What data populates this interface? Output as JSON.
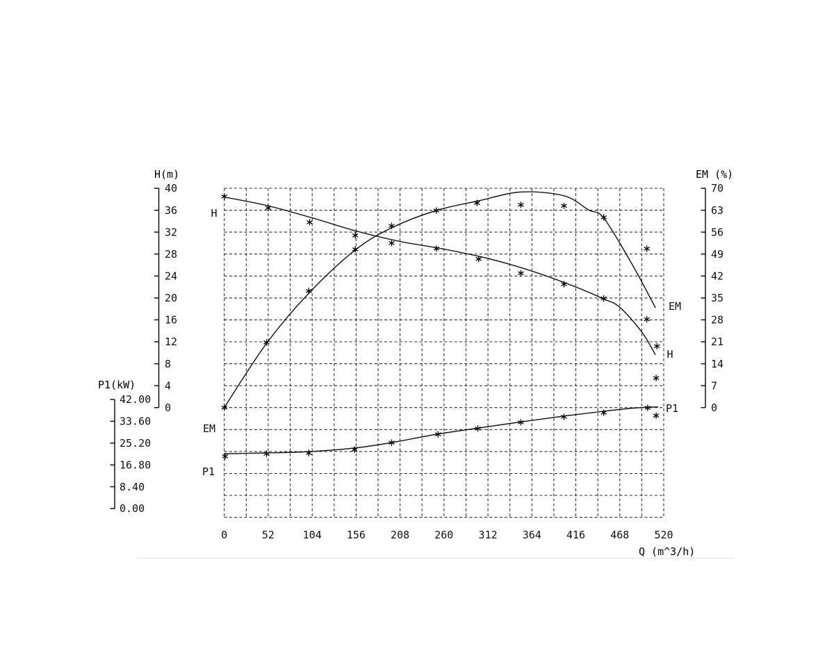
{
  "colors": {
    "background": "#ffffff",
    "ink": "#111111",
    "curve": "#161616",
    "grid": "#2e2e2e",
    "divider": "#e4e4e4"
  },
  "chart_data": {
    "type": "line",
    "grid": "dashed",
    "axes": {
      "q": {
        "title": "Q (m^3/h)",
        "min": 0,
        "max": 520,
        "grid_interval": 26,
        "ticks": [
          0,
          52,
          104,
          156,
          208,
          260,
          312,
          364,
          416,
          468,
          520
        ]
      },
      "h": {
        "title": "H(m)",
        "min": 0,
        "max": 40,
        "side": "left",
        "ticks": [
          "40",
          "36",
          "32",
          "28",
          "24",
          "20",
          "16",
          "12",
          "8",
          "4",
          "0"
        ]
      },
      "p1": {
        "title": "P1(kW)",
        "min": 0,
        "max": 42,
        "side": "far-left",
        "ticks": [
          "42.00",
          "33.60",
          "25.20",
          "16.80",
          "8.40",
          "0.00"
        ]
      },
      "em": {
        "title": "EM (%)",
        "min": 0,
        "max": 70,
        "side": "right",
        "ticks": [
          "70",
          "63",
          "56",
          "49",
          "42",
          "35",
          "28",
          "21",
          "14",
          "7",
          "0"
        ]
      }
    },
    "series": [
      {
        "name": "H",
        "axis": "h",
        "unit": "m",
        "curve": [
          [
            0,
            38.4
          ],
          [
            52,
            36.8
          ],
          [
            104,
            34.6
          ],
          [
            156,
            32.2
          ],
          [
            208,
            30.3
          ],
          [
            260,
            28.9
          ],
          [
            312,
            27.2
          ],
          [
            364,
            24.9
          ],
          [
            416,
            22.0
          ],
          [
            449,
            19.8
          ],
          [
            468,
            18.3
          ],
          [
            494,
            13.8
          ],
          [
            510,
            9.7
          ]
        ],
        "points": [
          [
            0,
            38.5
          ],
          [
            52,
            36.4
          ],
          [
            101,
            33.8
          ],
          [
            155,
            31.4
          ],
          [
            198,
            30.0
          ],
          [
            251,
            29.0
          ],
          [
            301,
            27.1
          ],
          [
            351,
            24.5
          ],
          [
            402,
            22.5
          ],
          [
            449,
            19.9
          ],
          [
            500,
            16.1
          ],
          [
            512,
            11.2
          ],
          [
            511,
            5.4
          ]
        ]
      },
      {
        "name": "EM",
        "axis": "em",
        "unit": "%",
        "curve": [
          [
            0,
            0
          ],
          [
            50,
            20.5
          ],
          [
            100,
            36.5
          ],
          [
            155,
            50.3
          ],
          [
            199,
            57.5
          ],
          [
            251,
            62.9
          ],
          [
            301,
            66.0
          ],
          [
            351,
            68.8
          ],
          [
            402,
            67.6
          ],
          [
            431,
            63.1
          ],
          [
            449,
            60.5
          ],
          [
            482,
            46.0
          ],
          [
            510,
            32.0
          ]
        ],
        "points": [
          [
            0,
            0
          ],
          [
            50,
            20.8
          ],
          [
            100,
            37.2
          ],
          [
            155,
            50.5
          ],
          [
            198,
            58.0
          ],
          [
            251,
            62.9
          ],
          [
            299,
            65.3
          ],
          [
            351,
            64.7
          ],
          [
            402,
            64.4
          ],
          [
            449,
            60.7
          ],
          [
            500,
            50.7
          ]
        ]
      },
      {
        "name": "P1",
        "axis": "p1",
        "unit": "kW",
        "curve": [
          [
            0,
            21.1
          ],
          [
            50,
            21.4
          ],
          [
            100,
            21.9
          ],
          [
            154,
            23.3
          ],
          [
            198,
            25.4
          ],
          [
            251,
            28.6
          ],
          [
            301,
            31.0
          ],
          [
            352,
            33.4
          ],
          [
            402,
            35.6
          ],
          [
            450,
            37.5
          ],
          [
            478,
            38.5
          ],
          [
            500,
            39.0
          ],
          [
            513,
            39.1
          ]
        ],
        "points": [
          [
            1,
            20.1
          ],
          [
            50,
            21.1
          ],
          [
            100,
            21.4
          ],
          [
            154,
            22.7
          ],
          [
            198,
            25.4
          ],
          [
            253,
            28.6
          ],
          [
            300,
            30.8
          ],
          [
            351,
            33.2
          ],
          [
            402,
            35.3
          ],
          [
            449,
            36.9
          ],
          [
            501,
            38.8
          ],
          [
            511,
            35.8
          ]
        ]
      }
    ],
    "curve_labels": {
      "left": [
        "H",
        "EM",
        "P1"
      ],
      "right": [
        "EM",
        "H",
        "P1"
      ]
    }
  }
}
